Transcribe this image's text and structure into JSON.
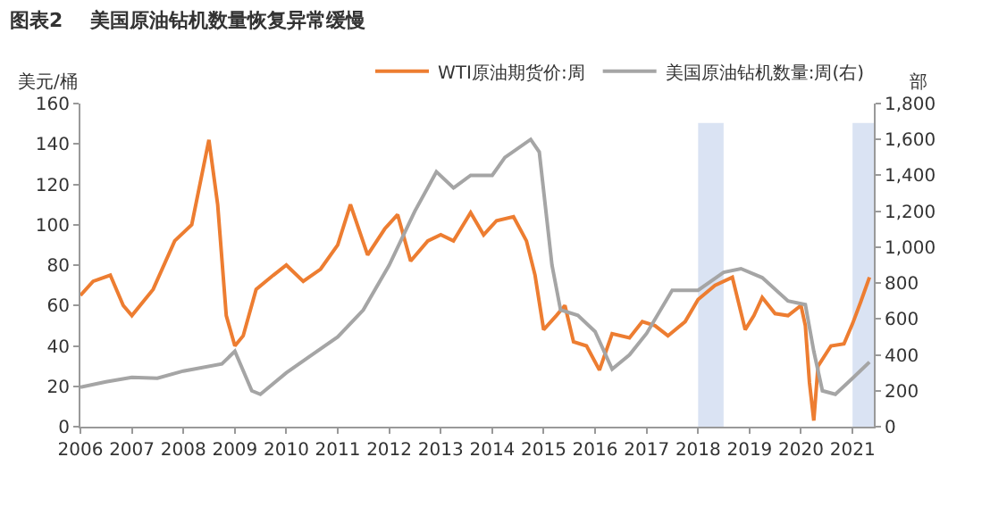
{
  "chart_data": {
    "type": "line",
    "title": "图表2    美国原油钻机数量恢复异常缓慢",
    "ylabel": "美元/桶",
    "y2label": "部",
    "xlim": [
      "2006-01-01",
      "2021-06-01"
    ],
    "xticks": [
      {
        "value": "2006-01-01",
        "label": "2006"
      },
      {
        "value": "2007-01-01",
        "label": "2007"
      },
      {
        "value": "2008-01-01",
        "label": "2008"
      },
      {
        "value": "2009-01-01",
        "label": "2009"
      },
      {
        "value": "2010-01-01",
        "label": "2010"
      },
      {
        "value": "2011-01-01",
        "label": "2011"
      },
      {
        "value": "2012-01-01",
        "label": "2012"
      },
      {
        "value": "2013-01-01",
        "label": "2013"
      },
      {
        "value": "2014-01-01",
        "label": "2014"
      },
      {
        "value": "2015-01-01",
        "label": "2015"
      },
      {
        "value": "2016-01-01",
        "label": "2016"
      },
      {
        "value": "2017-01-01",
        "label": "2017"
      },
      {
        "value": "2018-01-01",
        "label": "2018"
      },
      {
        "value": "2019-01-01",
        "label": "2019"
      },
      {
        "value": "2020-01-01",
        "label": "2020"
      },
      {
        "value": "2021-01-01",
        "label": "2021"
      }
    ],
    "ylim": [
      0,
      160
    ],
    "yticks": [
      0,
      20,
      40,
      60,
      80,
      100,
      120,
      140,
      160
    ],
    "y2lim": [
      0,
      1800
    ],
    "y2ticks": [
      0,
      200,
      400,
      600,
      800,
      {
        "value": 1000,
        "label": "1,000"
      },
      {
        "value": 1200,
        "label": "1,200"
      },
      {
        "value": 1400,
        "label": "1,400"
      },
      {
        "value": 1600,
        "label": "1,600"
      },
      {
        "value": 1800,
        "label": "1,800"
      }
    ],
    "grid": false,
    "legend": "top right",
    "bands": [
      {
        "axis": "x",
        "from": "2018-01-01",
        "to": "2018-07-01",
        "color": "#dae3f3"
      },
      {
        "axis": "x",
        "from": "2021-01-01",
        "to": "2021-06-01",
        "color": "#dae3f3"
      }
    ],
    "series": [
      {
        "name": "WTI原油期货价:周",
        "color": "#ed7d31",
        "x": [
          "2006-01",
          "2006-04",
          "2006-08",
          "2006-11",
          "2007-01",
          "2007-06",
          "2007-11",
          "2008-03",
          "2008-07",
          "2008-09",
          "2008-11",
          "2009-01",
          "2009-03",
          "2009-06",
          "2009-10",
          "2010-01",
          "2010-05",
          "2010-09",
          "2011-01",
          "2011-04",
          "2011-08",
          "2011-12",
          "2012-03",
          "2012-06",
          "2012-10",
          "2013-01",
          "2013-04",
          "2013-08",
          "2013-11",
          "2014-02",
          "2014-06",
          "2014-09",
          "2014-11",
          "2015-01",
          "2015-04",
          "2015-06",
          "2015-08",
          "2015-11",
          "2016-02",
          "2016-05",
          "2016-09",
          "2016-12",
          "2017-03",
          "2017-06",
          "2017-10",
          "2018-01",
          "2018-05",
          "2018-09",
          "2018-12",
          "2019-02",
          "2019-04",
          "2019-07",
          "2019-10",
          "2020-01",
          "2020-02",
          "2020-03",
          "2020-04",
          "2020-05",
          "2020-08",
          "2020-11",
          "2021-01",
          "2021-03",
          "2021-05"
        ],
        "values": [
          65,
          72,
          75,
          60,
          55,
          68,
          92,
          100,
          142,
          110,
          55,
          40,
          45,
          68,
          75,
          80,
          72,
          78,
          90,
          110,
          85,
          98,
          105,
          82,
          92,
          95,
          92,
          106,
          95,
          102,
          104,
          92,
          75,
          48,
          55,
          60,
          42,
          40,
          28,
          46,
          44,
          52,
          50,
          45,
          52,
          63,
          70,
          74,
          48,
          55,
          64,
          56,
          55,
          60,
          50,
          22,
          3,
          30,
          40,
          41,
          51,
          62,
          74
        ]
      },
      {
        "name": "美国原油钻机数量:周(右)",
        "axis": "y2",
        "color": "#a5a5a5",
        "x": [
          "2006-01",
          "2006-07",
          "2007-01",
          "2007-07",
          "2008-01",
          "2008-10",
          "2009-01",
          "2009-05",
          "2009-07",
          "2010-01",
          "2010-07",
          "2011-01",
          "2011-07",
          "2012-01",
          "2012-07",
          "2012-12",
          "2013-04",
          "2013-08",
          "2014-01",
          "2014-04",
          "2014-10",
          "2014-12",
          "2015-03",
          "2015-05",
          "2015-09",
          "2016-01",
          "2016-05",
          "2016-09",
          "2017-01",
          "2017-07",
          "2018-01",
          "2018-07",
          "2018-11",
          "2019-04",
          "2019-10",
          "2020-02",
          "2020-04",
          "2020-06",
          "2020-09",
          "2021-01",
          "2021-05"
        ],
        "values": [
          220,
          250,
          275,
          270,
          310,
          350,
          420,
          200,
          180,
          300,
          400,
          500,
          650,
          900,
          1200,
          1420,
          1330,
          1400,
          1400,
          1500,
          1600,
          1530,
          900,
          650,
          620,
          530,
          320,
          400,
          520,
          760,
          760,
          860,
          880,
          830,
          700,
          680,
          420,
          200,
          180,
          270,
          360
        ]
      }
    ]
  }
}
